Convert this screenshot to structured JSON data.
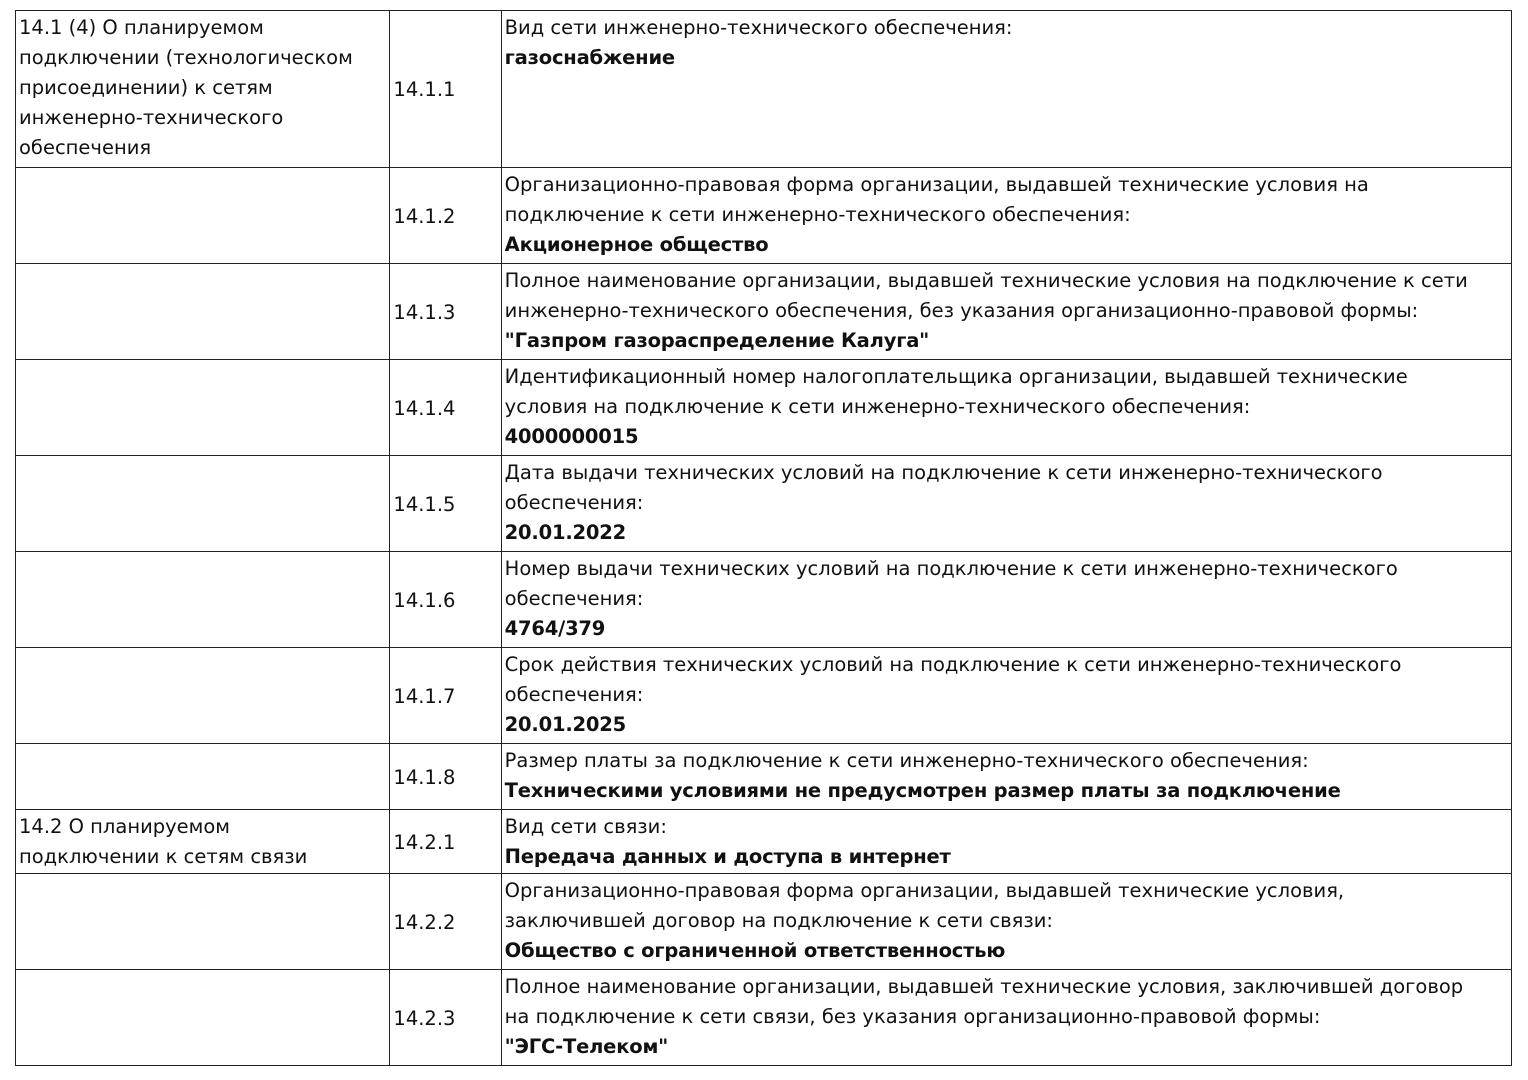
{
  "rows": [
    {
      "section": [
        "14.1 (4) О планируемом",
        "подключении (технологическом",
        "присоединении) к сетям",
        "инженерно-технического",
        "обеспечения"
      ],
      "num": "14.1.1",
      "label": [
        "Вид сети инженерно-технического обеспечения:"
      ],
      "value": "газоснабжение"
    },
    {
      "section": [],
      "num": "14.1.2",
      "label": [
        "Организационно-правовая форма организации, выдавшей технические условия на",
        "подключение к сети инженерно-технического обеспечения:"
      ],
      "value": "Акционерное общество"
    },
    {
      "section": [],
      "num": "14.1.3",
      "label": [
        "Полное наименование организации, выдавшей технические условия на подключение к сети",
        "инженерно-технического обеспечения, без указания организационно-правовой формы:"
      ],
      "value": "\"Газпром газораспределение Калуга\""
    },
    {
      "section": [],
      "num": "14.1.4",
      "label": [
        "Идентификационный номер налогоплательщика организации, выдавшей технические",
        "условия на подключение к сети инженерно-технического обеспечения:"
      ],
      "value": "4000000015"
    },
    {
      "section": [],
      "num": "14.1.5",
      "label": [
        "Дата выдачи технических условий на подключение к сети инженерно-технического",
        "обеспечения:"
      ],
      "value": "20.01.2022"
    },
    {
      "section": [],
      "num": "14.1.6",
      "label": [
        "Номер выдачи технических условий на подключение к сети инженерно-технического",
        "обеспечения:"
      ],
      "value": "4764/379"
    },
    {
      "section": [],
      "num": "14.1.7",
      "label": [
        "Срок действия технических условий на подключение к сети инженерно-технического",
        "обеспечения:"
      ],
      "value": "20.01.2025"
    },
    {
      "section": [],
      "num": "14.1.8",
      "label": [
        "Размер платы за подключение к сети инженерно-технического обеспечения:"
      ],
      "value": "Техническими условиями не предусмотрен размер платы за подключение"
    },
    {
      "section": [
        "14.2 О планируемом",
        "подключении к сетям связи"
      ],
      "num": "14.2.1",
      "label": [
        "Вид сети связи:"
      ],
      "value": "Передача данных и доступа в интернет"
    },
    {
      "section": [],
      "num": "14.2.2",
      "label": [
        "Организационно-правовая форма организации, выдавшей технические условия,",
        "заключившей договор на подключение к сети связи:"
      ],
      "value": "Общество с ограниченной ответственностью"
    },
    {
      "section": [],
      "num": "14.2.3",
      "label": [
        "Полное наименование организации, выдавшей технические условия, заключившей договор",
        "на подключение к сети связи, без указания организационно-правовой формы:"
      ],
      "value": "\"ЭГС-Телеком\""
    }
  ]
}
